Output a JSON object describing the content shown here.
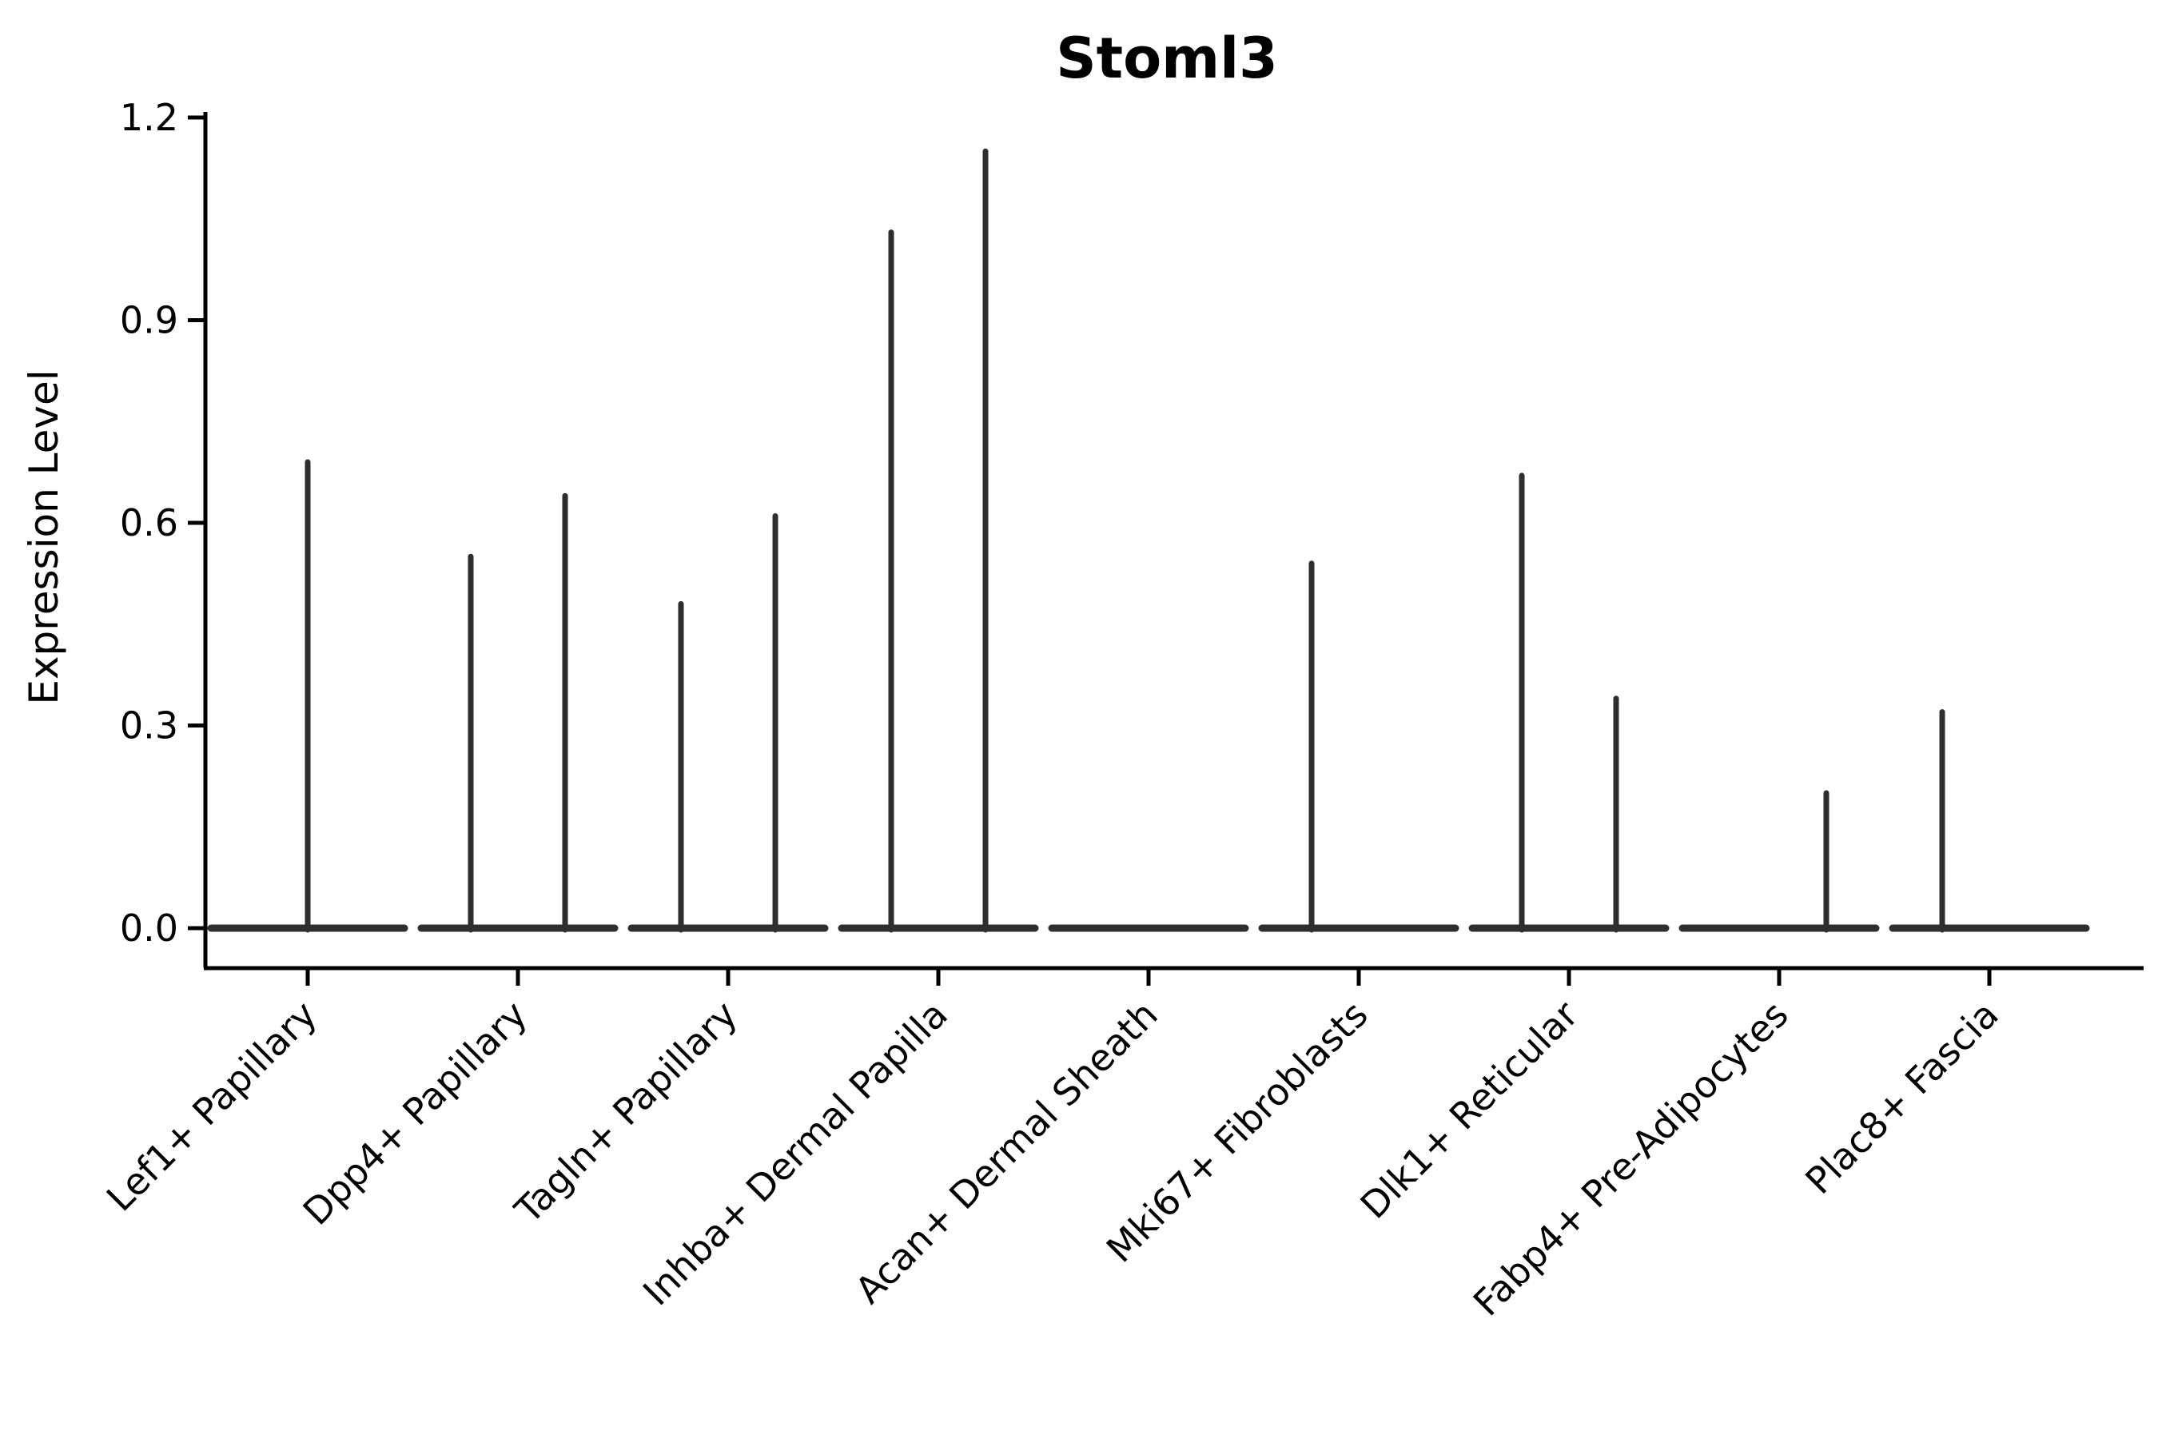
{
  "figure": {
    "background": "#ffffff",
    "axis_color": "#000000",
    "text_color": "#000000",
    "violin_color": "#2e2e2e"
  },
  "chart_data": {
    "type": "violin",
    "title": "Stoml3",
    "xlabel": "",
    "ylabel": "Expression Level",
    "ylim": [
      0.0,
      1.2
    ],
    "yticks": [
      "0.0",
      "0.3",
      "0.6",
      "0.9",
      "1.2"
    ],
    "ytick_values": [
      0.0,
      0.3,
      0.6,
      0.9,
      1.2
    ],
    "x_tick_rotation": 45,
    "grid": false,
    "legend": "none",
    "categories": [
      "Lef1+ Papillary",
      "Dpp4+ Papillary",
      "Tagln+ Papillary",
      "Inhba+ Dermal Papilla",
      "Acan+ Dermal Sheath",
      "Mki67+ Fibroblasts",
      "Dlk1+ Reticular",
      "Fabp4+ Pre-Adipocytes",
      "Plac8+ Fascia"
    ],
    "violins": [
      {
        "category": "Lef1+ Papillary",
        "baseline": 0.0,
        "spikes": [
          {
            "position": "center",
            "max": 0.69
          }
        ]
      },
      {
        "category": "Dpp4+ Papillary",
        "baseline": 0.0,
        "spikes": [
          {
            "position": "left",
            "max": 0.55
          },
          {
            "position": "right",
            "max": 0.64
          }
        ]
      },
      {
        "category": "Tagln+ Papillary",
        "baseline": 0.0,
        "spikes": [
          {
            "position": "left",
            "max": 0.48
          },
          {
            "position": "right",
            "max": 0.61
          }
        ]
      },
      {
        "category": "Inhba+ Dermal Papilla",
        "baseline": 0.0,
        "spikes": [
          {
            "position": "left",
            "max": 1.03
          },
          {
            "position": "right",
            "max": 1.15
          }
        ]
      },
      {
        "category": "Acan+ Dermal Sheath",
        "baseline": 0.0,
        "spikes": []
      },
      {
        "category": "Mki67+ Fibroblasts",
        "baseline": 0.0,
        "spikes": [
          {
            "position": "left",
            "max": 0.54
          }
        ]
      },
      {
        "category": "Dlk1+ Reticular",
        "baseline": 0.0,
        "spikes": [
          {
            "position": "left",
            "max": 0.67
          },
          {
            "position": "right",
            "max": 0.34
          }
        ]
      },
      {
        "category": "Fabp4+ Pre-Adipocytes",
        "baseline": 0.0,
        "spikes": [
          {
            "position": "right",
            "max": 0.2
          }
        ]
      },
      {
        "category": "Plac8+ Fascia",
        "baseline": 0.0,
        "spikes": [
          {
            "position": "left",
            "max": 0.32
          }
        ]
      }
    ]
  }
}
